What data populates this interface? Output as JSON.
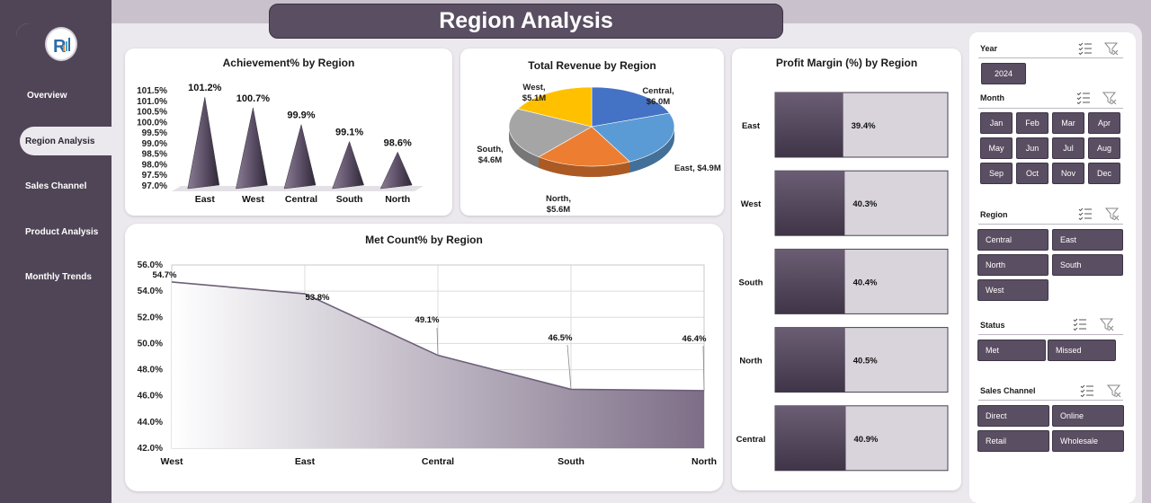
{
  "title": "Region Analysis",
  "nav": {
    "overview": "Overview",
    "region_analysis": "Region Analysis",
    "sales_channel": "Sales Channel",
    "product_analysis": "Product Analysis",
    "monthly_trends": "Monthly Trends"
  },
  "logo": {
    "icon": "rk-logo-icon"
  },
  "colors": {
    "accent": "#5a4e62",
    "sidebar": "#4f4556",
    "background": "#ebe8ee"
  },
  "chart_data": [
    {
      "type": "bar",
      "title": "Achievement% by Region",
      "categories": [
        "East",
        "West",
        "Central",
        "South",
        "North"
      ],
      "values": [
        101.2,
        100.7,
        99.9,
        99.1,
        98.6
      ],
      "labels": [
        "101.2%",
        "100.7%",
        "99.9%",
        "99.1%",
        "98.6%"
      ],
      "ylim": [
        97.0,
        101.5
      ],
      "yticks": [
        "97.0%",
        "97.5%",
        "98.0%",
        "98.5%",
        "99.0%",
        "99.5%",
        "100.0%",
        "100.5%",
        "101.0%",
        "101.5%"
      ]
    },
    {
      "type": "pie",
      "title": "Total Revenue by Region",
      "categories": [
        "West",
        "Central",
        "East",
        "North",
        "South"
      ],
      "values": [
        5.1,
        6.0,
        4.9,
        5.6,
        4.6
      ],
      "labels": [
        "West,",
        "$5.1M",
        "Central,",
        "$6.0M",
        "East, $4.9M",
        "North,",
        "$5.6M",
        "South,",
        "$4.6M"
      ],
      "colors": [
        "#4472c4",
        "#5b9bd5",
        "#ed7d31",
        "#a5a5a5",
        "#ffc000"
      ]
    },
    {
      "type": "bar",
      "title": "Profit Margin (%) by Region",
      "categories": [
        "East",
        "West",
        "South",
        "North",
        "Central"
      ],
      "values": [
        39.4,
        40.3,
        40.4,
        40.5,
        40.9
      ],
      "labels": [
        "39.4%",
        "40.3%",
        "40.4%",
        "40.5%",
        "40.9%"
      ]
    },
    {
      "type": "area",
      "title": "Met Count% by Region",
      "categories": [
        "West",
        "East",
        "Central",
        "South",
        "North"
      ],
      "values": [
        54.7,
        53.8,
        49.1,
        46.5,
        46.4
      ],
      "labels": [
        "54.7%",
        "53.8%",
        "49.1%",
        "46.5%",
        "46.4%"
      ],
      "ylim": [
        42.0,
        56.0
      ],
      "yticks": [
        "42.0%",
        "44.0%",
        "46.0%",
        "48.0%",
        "50.0%",
        "52.0%",
        "54.0%",
        "56.0%"
      ],
      "grid": true
    }
  ],
  "slicers": {
    "year": {
      "label": "Year",
      "items": [
        "2024"
      ]
    },
    "month": {
      "label": "Month",
      "items": [
        "Jan",
        "Feb",
        "Mar",
        "Apr",
        "May",
        "Jun",
        "Jul",
        "Aug",
        "Sep",
        "Oct",
        "Nov",
        "Dec"
      ]
    },
    "region": {
      "label": "Region",
      "items": [
        "Central",
        "East",
        "North",
        "South",
        "West"
      ]
    },
    "status": {
      "label": "Status",
      "items": [
        "Met",
        "Missed"
      ]
    },
    "channel": {
      "label": "Sales Channel",
      "items": [
        "Direct",
        "Online",
        "Retail",
        "Wholesale"
      ]
    },
    "icons": {
      "multi_select": "multi-select-icon",
      "clear_filter": "clear-filter-icon"
    }
  }
}
